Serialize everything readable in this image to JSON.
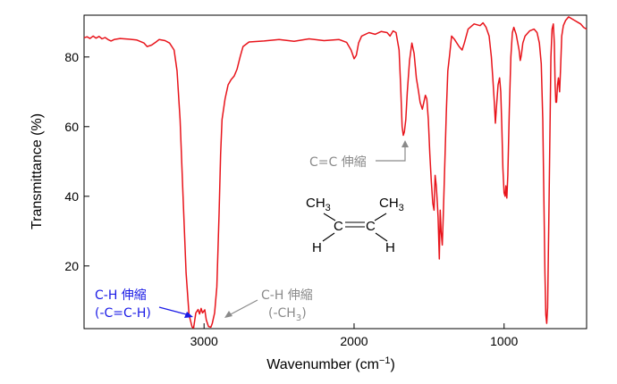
{
  "chart_data": {
    "type": "line",
    "xlabel": "Wavenumber (cm",
    "xlabel_sup": "−1",
    "xlabel_close": ")",
    "ylabel": "Transmittance (%)",
    "xlim": [
      3800,
      450
    ],
    "ylim": [
      2,
      92
    ],
    "x_reversed": true,
    "x_ticks": [
      3000,
      2000,
      1000
    ],
    "y_ticks": [
      20,
      40,
      60,
      80
    ],
    "grid": false,
    "line_color": "#e8141b",
    "series": [
      {
        "points": [
          [
            3800,
            85.5
          ],
          [
            3780,
            85.8
          ],
          [
            3760,
            85.3
          ],
          [
            3740,
            86.0
          ],
          [
            3720,
            85.4
          ],
          [
            3700,
            85.9
          ],
          [
            3680,
            85.2
          ],
          [
            3660,
            85.6
          ],
          [
            3640,
            85.0
          ],
          [
            3620,
            84.6
          ],
          [
            3600,
            85.0
          ],
          [
            3560,
            85.3
          ],
          [
            3500,
            85.1
          ],
          [
            3450,
            84.9
          ],
          [
            3400,
            84.0
          ],
          [
            3380,
            83.0
          ],
          [
            3350,
            83.4
          ],
          [
            3320,
            84.3
          ],
          [
            3300,
            85.0
          ],
          [
            3260,
            84.7
          ],
          [
            3230,
            84.0
          ],
          [
            3200,
            82.0
          ],
          [
            3180,
            76.0
          ],
          [
            3160,
            62.0
          ],
          [
            3140,
            40.0
          ],
          [
            3120,
            18.0
          ],
          [
            3100,
            6.0
          ],
          [
            3080,
            2.5
          ],
          [
            3070,
            2.2
          ],
          [
            3055,
            6.5
          ],
          [
            3040,
            7.5
          ],
          [
            3030,
            6.2
          ],
          [
            3020,
            7.8
          ],
          [
            3010,
            6.5
          ],
          [
            2995,
            7.4
          ],
          [
            2985,
            4.5
          ],
          [
            2970,
            2.6
          ],
          [
            2955,
            2.4
          ],
          [
            2945,
            3.5
          ],
          [
            2930,
            6.5
          ],
          [
            2915,
            14.0
          ],
          [
            2900,
            35.0
          ],
          [
            2890,
            52.0
          ],
          [
            2880,
            62.0
          ],
          [
            2860,
            68.0
          ],
          [
            2840,
            72.0
          ],
          [
            2820,
            73.5
          ],
          [
            2800,
            74.5
          ],
          [
            2780,
            76.5
          ],
          [
            2760,
            80.0
          ],
          [
            2740,
            83.0
          ],
          [
            2700,
            84.3
          ],
          [
            2600,
            84.6
          ],
          [
            2500,
            85.0
          ],
          [
            2400,
            84.5
          ],
          [
            2300,
            85.2
          ],
          [
            2200,
            84.7
          ],
          [
            2100,
            85.0
          ],
          [
            2050,
            84.2
          ],
          [
            2020,
            82.0
          ],
          [
            2000,
            79.5
          ],
          [
            1985,
            80.5
          ],
          [
            1970,
            84.0
          ],
          [
            1950,
            86.0
          ],
          [
            1900,
            87.0
          ],
          [
            1860,
            86.5
          ],
          [
            1820,
            87.3
          ],
          [
            1780,
            87.0
          ],
          [
            1760,
            86.0
          ],
          [
            1740,
            87.5
          ],
          [
            1720,
            87.0
          ],
          [
            1700,
            82.0
          ],
          [
            1690,
            72.0
          ],
          [
            1680,
            60.0
          ],
          [
            1672,
            57.5
          ],
          [
            1665,
            58.5
          ],
          [
            1655,
            62.0
          ],
          [
            1645,
            70.0
          ],
          [
            1630,
            79.0
          ],
          [
            1615,
            84.0
          ],
          [
            1600,
            81.0
          ],
          [
            1585,
            74.0
          ],
          [
            1570,
            70.0
          ],
          [
            1560,
            67.0
          ],
          [
            1545,
            65.0
          ],
          [
            1535,
            67.0
          ],
          [
            1525,
            69.0
          ],
          [
            1515,
            68.0
          ],
          [
            1505,
            62.0
          ],
          [
            1495,
            52.0
          ],
          [
            1485,
            44.0
          ],
          [
            1475,
            38.0
          ],
          [
            1467,
            36.0
          ],
          [
            1460,
            46.0
          ],
          [
            1452,
            43.0
          ],
          [
            1445,
            38.0
          ],
          [
            1440,
            34.0
          ],
          [
            1432,
            22.0
          ],
          [
            1426,
            36.0
          ],
          [
            1420,
            30.0
          ],
          [
            1412,
            26.0
          ],
          [
            1405,
            35.0
          ],
          [
            1395,
            50.0
          ],
          [
            1385,
            64.0
          ],
          [
            1375,
            76.0
          ],
          [
            1362,
            81.0
          ],
          [
            1350,
            86.0
          ],
          [
            1330,
            85.0
          ],
          [
            1300,
            83.0
          ],
          [
            1280,
            82.0
          ],
          [
            1265,
            84.0
          ],
          [
            1240,
            88.0
          ],
          [
            1200,
            89.5
          ],
          [
            1160,
            89.0
          ],
          [
            1140,
            89.8
          ],
          [
            1120,
            88.5
          ],
          [
            1100,
            86.0
          ],
          [
            1085,
            80.0
          ],
          [
            1075,
            74.0
          ],
          [
            1065,
            67.0
          ],
          [
            1058,
            61.0
          ],
          [
            1050,
            66.0
          ],
          [
            1040,
            72.0
          ],
          [
            1030,
            74.0
          ],
          [
            1022,
            70.0
          ],
          [
            1015,
            60.0
          ],
          [
            1008,
            48.0
          ],
          [
            1000,
            41.0
          ],
          [
            993,
            40.0
          ],
          [
            988,
            43.0
          ],
          [
            982,
            39.5
          ],
          [
            975,
            46.0
          ],
          [
            965,
            65.0
          ],
          [
            955,
            80.0
          ],
          [
            945,
            87.0
          ],
          [
            935,
            88.5
          ],
          [
            920,
            86.5
          ],
          [
            900,
            82.0
          ],
          [
            892,
            79.0
          ],
          [
            885,
            80.5
          ],
          [
            875,
            84.0
          ],
          [
            860,
            86.0
          ],
          [
            830,
            87.5
          ],
          [
            800,
            88.0
          ],
          [
            780,
            87.0
          ],
          [
            765,
            84.0
          ],
          [
            752,
            78.0
          ],
          [
            742,
            62.0
          ],
          [
            735,
            40.0
          ],
          [
            728,
            18.0
          ],
          [
            722,
            6.0
          ],
          [
            716,
            3.5
          ],
          [
            710,
            8.0
          ],
          [
            702,
            32.0
          ],
          [
            694,
            60.0
          ],
          [
            688,
            80.0
          ],
          [
            680,
            88.0
          ],
          [
            672,
            89.5
          ],
          [
            665,
            84.0
          ],
          [
            660,
            72.0
          ],
          [
            655,
            67.0
          ],
          [
            650,
            67.0
          ],
          [
            644,
            72.0
          ],
          [
            638,
            74.0
          ],
          [
            630,
            70.0
          ],
          [
            624,
            76.0
          ],
          [
            616,
            86.0
          ],
          [
            605,
            89.0
          ],
          [
            590,
            90.5
          ],
          [
            570,
            91.5
          ],
          [
            550,
            91.0
          ],
          [
            530,
            90.5
          ],
          [
            510,
            90.0
          ],
          [
            490,
            89.5
          ],
          [
            470,
            88.5
          ],
          [
            450,
            88.0
          ]
        ]
      }
    ],
    "annotations": [
      {
        "id": "ch-blue",
        "lines": [
          "C-H 伸縮",
          "(-C=C-H)"
        ],
        "color": "#1a1ae6",
        "target": [
          3075,
          4.0
        ]
      },
      {
        "id": "ch-gray",
        "lines": [
          "C-H 伸縮",
          "(-CH",
          "3",
          ")"
        ],
        "color": "#8a8a8a",
        "target": [
          2962,
          3.2
        ]
      },
      {
        "id": "cc-gray",
        "text": "C=C 伸縮",
        "color": "#8a8a8a",
        "target": [
          1672,
          55.0
        ]
      }
    ],
    "structure": {
      "ch3_left": "CH",
      "ch3_left_sub": "3",
      "ch3_right": "CH",
      "ch3_right_sub": "3",
      "c_left": "C",
      "c_right": "C",
      "h_left": "H",
      "h_right": "H"
    }
  }
}
